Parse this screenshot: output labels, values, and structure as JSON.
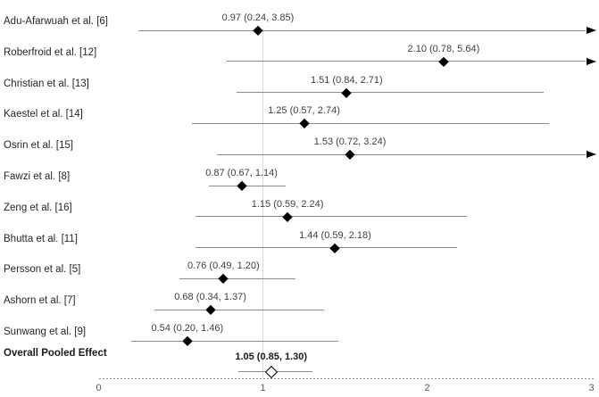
{
  "chart_data": {
    "type": "forest",
    "title": "",
    "xlabel": "",
    "ylabel": "",
    "x_axis": {
      "range": [
        0,
        3
      ],
      "ticks": [
        0,
        1,
        2,
        3
      ],
      "tick_labels": [
        "0",
        "1",
        "2",
        "3"
      ],
      "reference_line_x": 1,
      "style": "dashed"
    },
    "legend": "none",
    "grid": "off",
    "studies": [
      {
        "label": "Adu-Afarwuah et al. [6]",
        "display": "0.97 (0.24, 3.85)",
        "estimate": 0.97,
        "ci_lower": 0.24,
        "ci_upper": 3.85,
        "clipped_right": true
      },
      {
        "label": "Roberfroid et al. [12]",
        "display": "2.10 (0.78, 5.64)",
        "estimate": 2.1,
        "ci_lower": 0.78,
        "ci_upper": 5.64,
        "clipped_right": true
      },
      {
        "label": "Christian et al. [13]",
        "display": "1.51 (0.84, 2.71)",
        "estimate": 1.51,
        "ci_lower": 0.84,
        "ci_upper": 2.71,
        "clipped_right": false
      },
      {
        "label": "Kaestel et al. [14]",
        "display": "1.25 (0.57, 2.74)",
        "estimate": 1.25,
        "ci_lower": 0.57,
        "ci_upper": 2.74,
        "clipped_right": false
      },
      {
        "label": "Osrin et al. [15]",
        "display": "1.53 (0.72, 3.24)",
        "estimate": 1.53,
        "ci_lower": 0.72,
        "ci_upper": 3.24,
        "clipped_right": true
      },
      {
        "label": "Fawzi et al. [8]",
        "display": "0.87 (0.67, 1.14)",
        "estimate": 0.87,
        "ci_lower": 0.67,
        "ci_upper": 1.14,
        "clipped_right": false
      },
      {
        "label": "Zeng et al. [16]",
        "display": "1.15 (0.59, 2.24)",
        "estimate": 1.15,
        "ci_lower": 0.59,
        "ci_upper": 2.24,
        "clipped_right": false
      },
      {
        "label": "Bhutta et al. [11]",
        "display": "1.44 (0.59, 2.18)",
        "estimate": 1.44,
        "ci_lower": 0.59,
        "ci_upper": 2.18,
        "clipped_right": false
      },
      {
        "label": "Persson et al. [5]",
        "display": "0.76 (0.49, 1.20)",
        "estimate": 0.76,
        "ci_lower": 0.49,
        "ci_upper": 1.2,
        "clipped_right": false
      },
      {
        "label": "Ashorn et al. [7]",
        "display": "0.68 (0.34, 1.37)",
        "estimate": 0.68,
        "ci_lower": 0.34,
        "ci_upper": 1.37,
        "clipped_right": false
      },
      {
        "label": "Sunwang et al. [9]",
        "display": "0.54 (0.20, 1.46)",
        "estimate": 0.54,
        "ci_lower": 0.2,
        "ci_upper": 1.46,
        "clipped_right": false
      }
    ],
    "overall": {
      "label": "Overall Pooled Effect",
      "display": "1.05 (0.85, 1.30)",
      "estimate": 1.05,
      "ci_lower": 0.85,
      "ci_upper": 1.3
    },
    "colors": {
      "ci_line": "#8c8c8c",
      "marker": "#000000",
      "pooled_marker_fill": "#ffffff",
      "reference_line": "#d9d9d9",
      "axis_line": "#8c8c8c",
      "tick_text": "#595959",
      "label_text": "#262626",
      "value_text": "#404040",
      "background": "#ffffff"
    }
  },
  "layout_meta": {
    "marker_shape_study": "filled-diamond",
    "marker_shape_overall": "open-diamond"
  }
}
